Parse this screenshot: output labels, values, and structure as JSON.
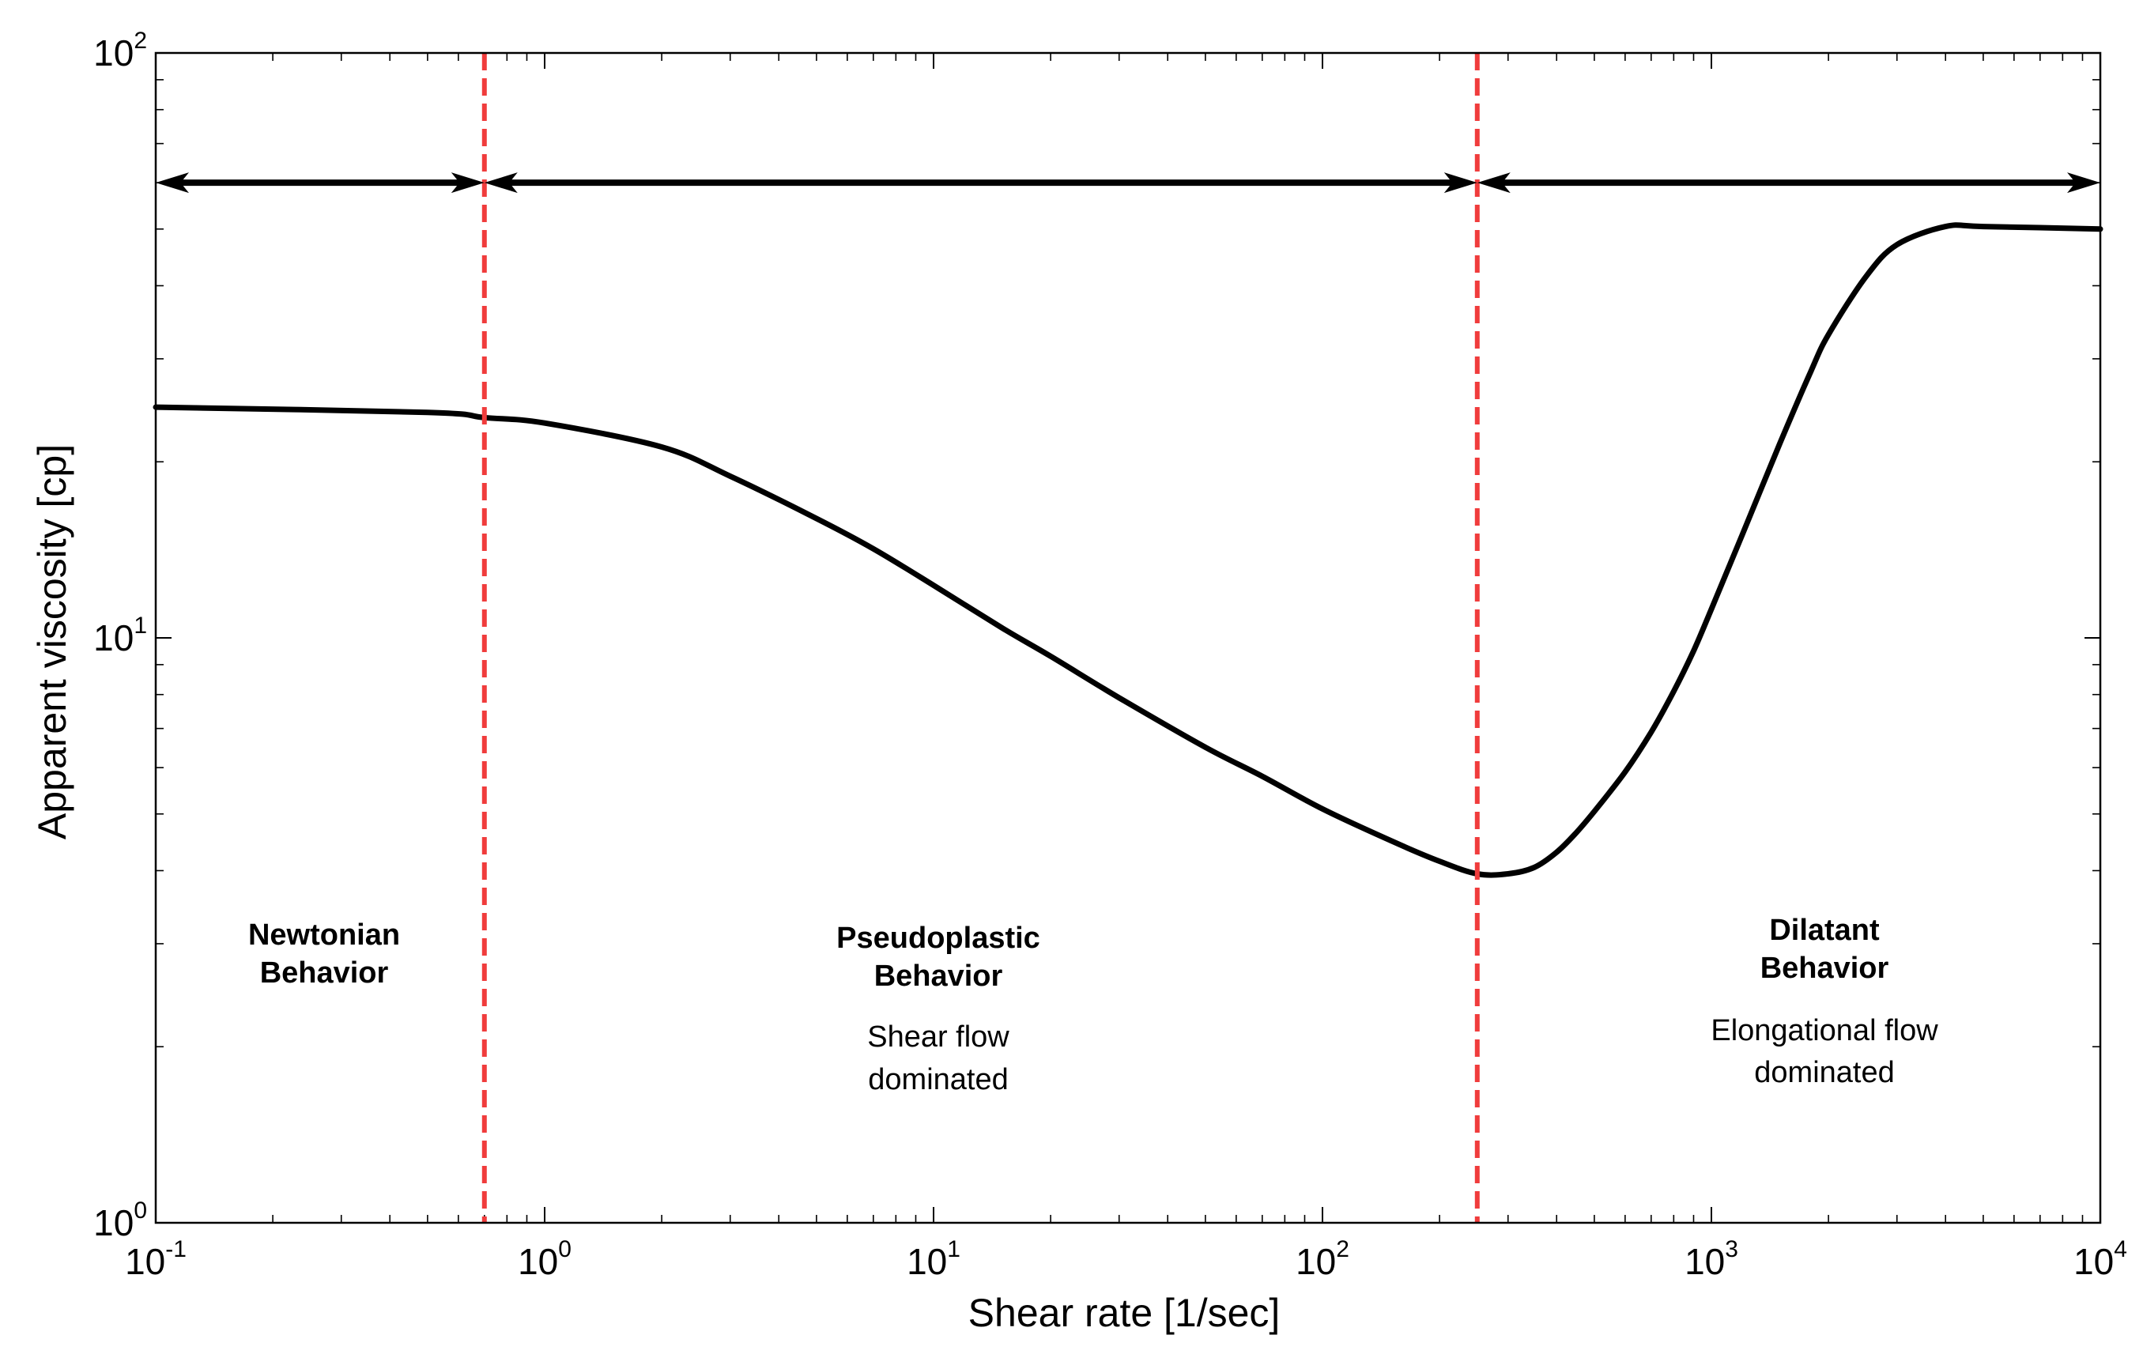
{
  "chart_data": {
    "type": "line",
    "title": "",
    "xlabel": "Shear rate [1/sec]",
    "ylabel": "Apparent viscosity [cp]",
    "xscale": "log",
    "yscale": "log",
    "xlim": [
      0.1,
      10000
    ],
    "ylim": [
      1,
      100
    ],
    "grid": false,
    "x_ticks": [
      {
        "base": "10",
        "exp": "-1",
        "value": 0.1
      },
      {
        "base": "10",
        "exp": "0",
        "value": 1
      },
      {
        "base": "10",
        "exp": "1",
        "value": 10
      },
      {
        "base": "10",
        "exp": "2",
        "value": 100
      },
      {
        "base": "10",
        "exp": "3",
        "value": 1000
      },
      {
        "base": "10",
        "exp": "4",
        "value": 10000
      }
    ],
    "y_ticks": [
      {
        "base": "10",
        "exp": "0",
        "value": 1
      },
      {
        "base": "10",
        "exp": "1",
        "value": 10
      },
      {
        "base": "10",
        "exp": "2",
        "value": 100
      }
    ],
    "series": [
      {
        "name": "Apparent viscosity",
        "color": "#000000",
        "x": [
          0.1,
          0.5,
          0.7,
          1,
          2,
          3,
          5,
          7,
          10,
          15,
          20,
          30,
          50,
          70,
          100,
          150,
          200,
          250,
          300,
          350,
          400,
          450,
          500,
          600,
          700,
          800,
          900,
          1000,
          1200,
          1500,
          1800,
          2000,
          2500,
          3000,
          4000,
          5000,
          10000
        ],
        "y": [
          24.8,
          24.3,
          23.8,
          23.3,
          21.2,
          18.9,
          16.0,
          14.2,
          12.3,
          10.4,
          9.3,
          7.9,
          6.5,
          5.8,
          5.1,
          4.5,
          4.15,
          3.95,
          3.95,
          4.05,
          4.3,
          4.65,
          5.05,
          5.9,
          6.9,
          8.1,
          9.5,
          11.2,
          15.0,
          21.5,
          28.5,
          33.0,
          41.5,
          47.0,
          50.5,
          50.5,
          50.0
        ]
      }
    ],
    "boundaries": [
      {
        "x": 0.7,
        "color": "#f03c3c",
        "style": "dashed"
      },
      {
        "x": 250,
        "color": "#f03c3c",
        "style": "dashed"
      }
    ],
    "arrows_y": 60,
    "arrows": [
      {
        "from": 0.1,
        "to": 0.7
      },
      {
        "from": 0.7,
        "to": 250
      },
      {
        "from": 250,
        "to": 10000
      }
    ],
    "regions": [
      {
        "title_line1": "Newtonian",
        "title_line2": "Behavior",
        "desc_line1": "",
        "desc_line2": ""
      },
      {
        "title_line1": "Pseudoplastic",
        "title_line2": "Behavior",
        "desc_line1": "Shear flow",
        "desc_line2": "dominated"
      },
      {
        "title_line1": "Dilatant",
        "title_line2": "Behavior",
        "desc_line1": "Elongational flow",
        "desc_line2": "dominated"
      }
    ]
  }
}
